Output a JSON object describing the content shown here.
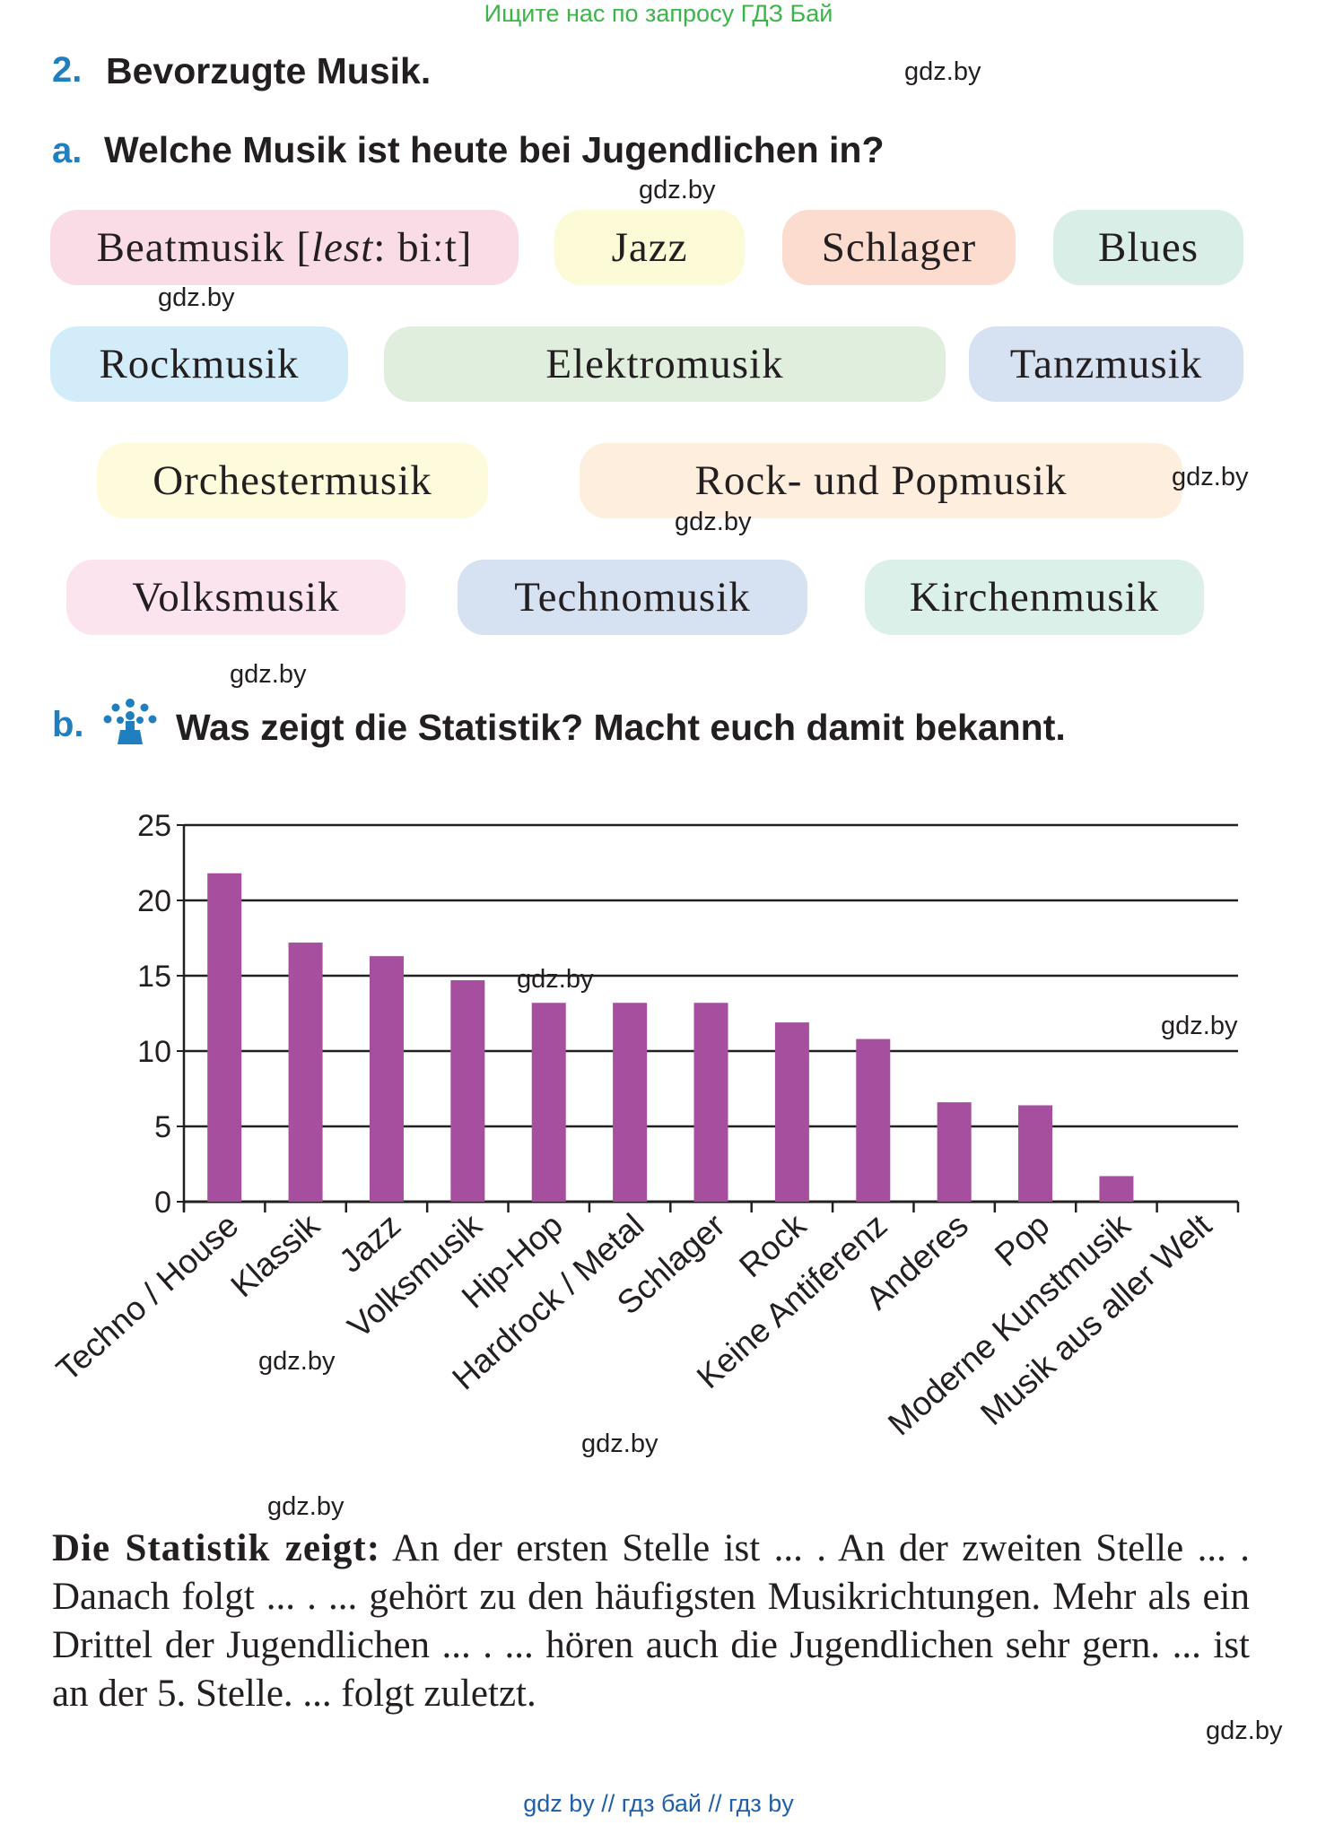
{
  "banner": "Ищите нас по запросу ГДЗ Бай",
  "section2": {
    "number": "2.",
    "title": "Bevorzugte Musik."
  },
  "partA": {
    "letter": "a.",
    "question": "Welche Musik ist heute bei Jugendlichen in?"
  },
  "genres": [
    {
      "text": "Beatmusik [",
      "italic": "lest",
      "rest": ": biːt]",
      "color": "#fadce6"
    },
    {
      "text": "Jazz",
      "color": "#fdfad8"
    },
    {
      "text": "Schlager",
      "color": "#fbdccf"
    },
    {
      "text": "Blues",
      "color": "#d8eee6"
    },
    {
      "text": "Rockmusik",
      "color": "#d3ecfa"
    },
    {
      "text": "Elektromusik",
      "color": "#e0eedd"
    },
    {
      "text": "Tanzmusik",
      "color": "#d6e2f2"
    },
    {
      "text": "Orchestermusik",
      "color": "#fdfbdc"
    },
    {
      "text": "Rock- und Popmusik",
      "color": "#fdeede"
    },
    {
      "text": "Volksmusik",
      "color": "#fce4ee"
    },
    {
      "text": "Technomusik",
      "color": "#d6e1f1"
    },
    {
      "text": "Kirchenmusik",
      "color": "#dcf0ea"
    }
  ],
  "partB": {
    "letter": "b.",
    "question": "Was zeigt die Statistik? Macht euch damit bekannt.",
    "icon": "group-work-icon"
  },
  "chart_data": {
    "type": "bar",
    "categories": [
      "Techno / House",
      "Klassik",
      "Jazz",
      "Volksmusik",
      "Hip-Hop",
      "Hardrock / Metal",
      "Schlager",
      "Rock",
      "Keine Antiferenz",
      "Anderes",
      "Pop",
      "Moderne Kunstmusik",
      "Musik aus aller Welt"
    ],
    "values": [
      21.8,
      17.2,
      16.3,
      14.7,
      13.2,
      13.2,
      13.2,
      11.9,
      10.8,
      6.6,
      6.4,
      1.7,
      0
    ],
    "yticks": [
      "0",
      "5",
      "10",
      "15",
      "20",
      "25"
    ],
    "ylim": [
      0,
      25
    ],
    "grid": true,
    "bar_color": "#a64f9e"
  },
  "paragraph": {
    "lead": "Die Statistik zeigt:",
    "body": "An der ersten Stelle ist ... . An der zweiten Stelle ... . Danach folgt ... . ... gehört zu den häufigsten Musikrichtungen. Mehr als ein Drittel der Jugendlichen ... . ... hören auch die Jugendlichen sehr gern. ... ist an der 5. Stelle. ... folgt zuletzt."
  },
  "watermarks": {
    "text": "gdz.by"
  },
  "footer": "gdz by  //  гдз бай  //  гдз by"
}
